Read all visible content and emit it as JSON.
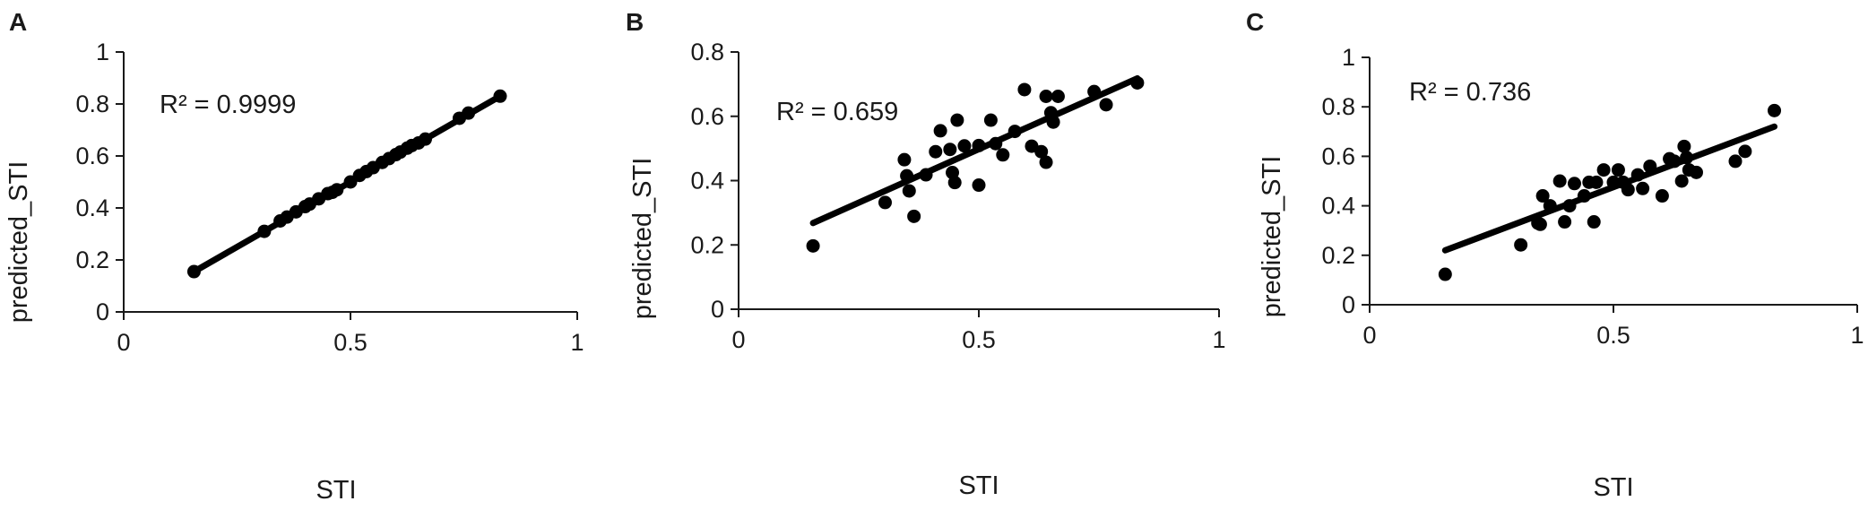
{
  "chart_data": [
    {
      "type": "scatter",
      "panel": "A",
      "xlabel": "STI",
      "ylabel": "predicted_STI",
      "xlim": [
        0,
        1
      ],
      "ylim": [
        0,
        1
      ],
      "xticks": [
        "0",
        "0.5",
        "1"
      ],
      "yticks": [
        "0",
        "0.2",
        "0.4",
        "0.6",
        "0.8",
        "1"
      ],
      "annotation": "R² = 0.9999",
      "trendline": {
        "x": [
          0.155,
          0.83
        ],
        "y": [
          0.155,
          0.83
        ]
      },
      "points": [
        [
          0.155,
          0.155
        ],
        [
          0.31,
          0.31
        ],
        [
          0.345,
          0.35
        ],
        [
          0.36,
          0.365
        ],
        [
          0.38,
          0.385
        ],
        [
          0.4,
          0.405
        ],
        [
          0.41,
          0.415
        ],
        [
          0.43,
          0.435
        ],
        [
          0.45,
          0.455
        ],
        [
          0.46,
          0.46
        ],
        [
          0.47,
          0.47
        ],
        [
          0.5,
          0.5
        ],
        [
          0.52,
          0.525
        ],
        [
          0.535,
          0.54
        ],
        [
          0.55,
          0.555
        ],
        [
          0.57,
          0.575
        ],
        [
          0.585,
          0.59
        ],
        [
          0.6,
          0.605
        ],
        [
          0.61,
          0.615
        ],
        [
          0.625,
          0.63
        ],
        [
          0.635,
          0.64
        ],
        [
          0.65,
          0.65
        ],
        [
          0.665,
          0.665
        ],
        [
          0.74,
          0.745
        ],
        [
          0.76,
          0.765
        ],
        [
          0.83,
          0.83
        ]
      ]
    },
    {
      "type": "scatter",
      "panel": "B",
      "xlabel": "STI",
      "ylabel": "predicted_STI",
      "xlim": [
        0,
        1
      ],
      "ylim": [
        0,
        0.8
      ],
      "xticks": [
        "0",
        "0.5",
        "1"
      ],
      "yticks": [
        "0",
        "0.2",
        "0.4",
        "0.6",
        "0.8"
      ],
      "annotation": "R² = 0.659",
      "trendline": {
        "x": [
          0.155,
          0.83
        ],
        "y": [
          0.268,
          0.718
        ]
      },
      "points": [
        [
          0.155,
          0.197
        ],
        [
          0.305,
          0.332
        ],
        [
          0.345,
          0.465
        ],
        [
          0.35,
          0.415
        ],
        [
          0.355,
          0.368
        ],
        [
          0.365,
          0.289
        ],
        [
          0.39,
          0.418
        ],
        [
          0.41,
          0.49
        ],
        [
          0.42,
          0.555
        ],
        [
          0.44,
          0.497
        ],
        [
          0.445,
          0.425
        ],
        [
          0.45,
          0.394
        ],
        [
          0.455,
          0.588
        ],
        [
          0.47,
          0.508
        ],
        [
          0.5,
          0.509
        ],
        [
          0.5,
          0.386
        ],
        [
          0.525,
          0.588
        ],
        [
          0.535,
          0.515
        ],
        [
          0.55,
          0.48
        ],
        [
          0.575,
          0.553
        ],
        [
          0.595,
          0.683
        ],
        [
          0.61,
          0.507
        ],
        [
          0.63,
          0.49
        ],
        [
          0.64,
          0.662
        ],
        [
          0.64,
          0.457
        ],
        [
          0.65,
          0.611
        ],
        [
          0.655,
          0.582
        ],
        [
          0.665,
          0.662
        ],
        [
          0.74,
          0.677
        ],
        [
          0.765,
          0.636
        ],
        [
          0.83,
          0.704
        ]
      ]
    },
    {
      "type": "scatter",
      "panel": "C",
      "xlabel": "STI",
      "ylabel": "predicted_STI",
      "xlim": [
        0,
        1
      ],
      "ylim": [
        0,
        1
      ],
      "xticks": [
        "0",
        "0.5",
        "1"
      ],
      "yticks": [
        "0",
        "0.2",
        "0.4",
        "0.6",
        "0.8",
        "1"
      ],
      "annotation": "R² = 0.736",
      "trendline": {
        "x": [
          0.155,
          0.83
        ],
        "y": [
          0.22,
          0.72
        ]
      },
      "points": [
        [
          0.155,
          0.123
        ],
        [
          0.31,
          0.242
        ],
        [
          0.345,
          0.33
        ],
        [
          0.35,
          0.325
        ],
        [
          0.355,
          0.44
        ],
        [
          0.37,
          0.4
        ],
        [
          0.39,
          0.5
        ],
        [
          0.4,
          0.335
        ],
        [
          0.41,
          0.4
        ],
        [
          0.42,
          0.49
        ],
        [
          0.44,
          0.44
        ],
        [
          0.45,
          0.495
        ],
        [
          0.46,
          0.335
        ],
        [
          0.465,
          0.495
        ],
        [
          0.48,
          0.545
        ],
        [
          0.5,
          0.495
        ],
        [
          0.51,
          0.545
        ],
        [
          0.52,
          0.495
        ],
        [
          0.53,
          0.465
        ],
        [
          0.55,
          0.525
        ],
        [
          0.56,
          0.47
        ],
        [
          0.575,
          0.56
        ],
        [
          0.6,
          0.44
        ],
        [
          0.615,
          0.59
        ],
        [
          0.625,
          0.58
        ],
        [
          0.64,
          0.5
        ],
        [
          0.645,
          0.64
        ],
        [
          0.65,
          0.595
        ],
        [
          0.655,
          0.545
        ],
        [
          0.67,
          0.535
        ],
        [
          0.75,
          0.58
        ],
        [
          0.77,
          0.62
        ],
        [
          0.83,
          0.785
        ]
      ]
    }
  ]
}
